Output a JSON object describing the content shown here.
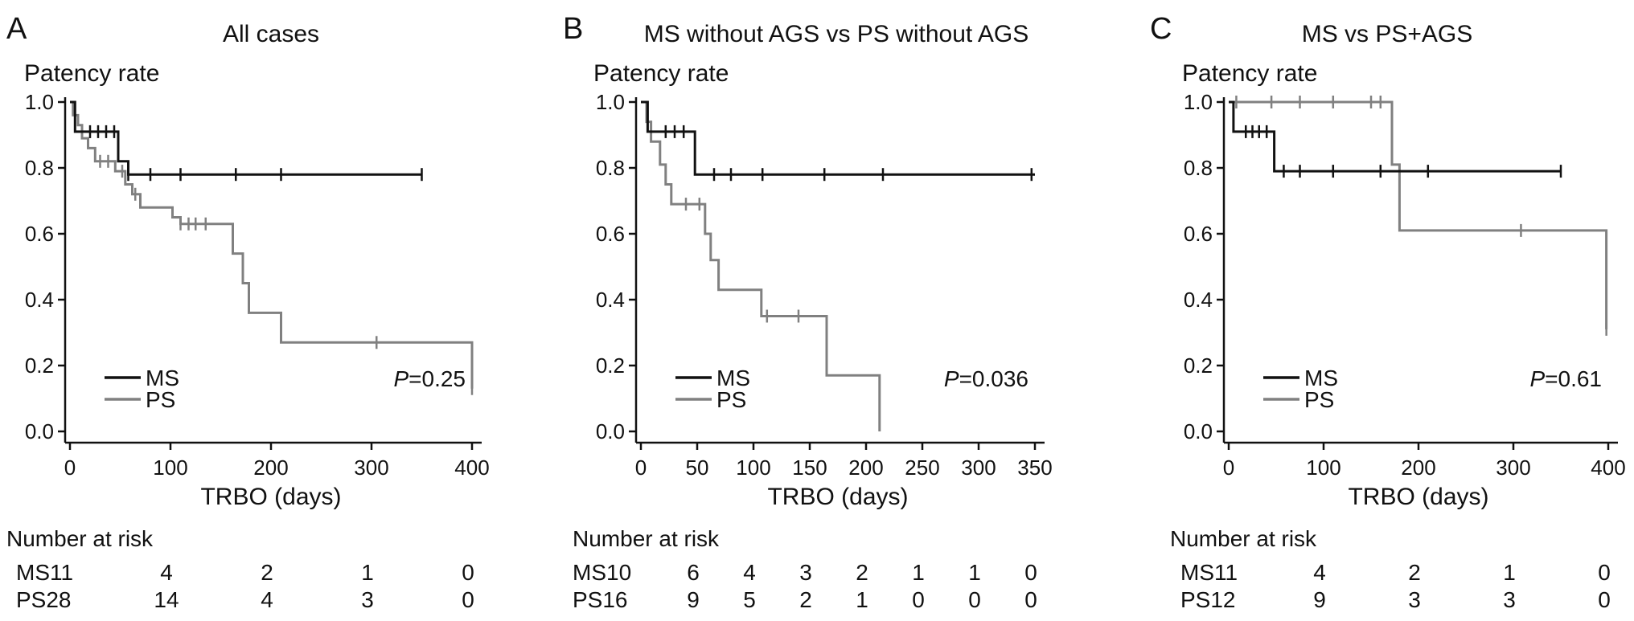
{
  "chart_data": [
    {
      "type": "line",
      "panel_letter": "A",
      "title": "All cases",
      "ylabel": "Patency rate",
      "xlabel": "TRBO (days)",
      "xlim": [
        0,
        400
      ],
      "ylim": [
        0,
        1
      ],
      "xticks": [
        "0",
        "100",
        "200",
        "300",
        "400"
      ],
      "xtick_values": [
        0,
        100,
        200,
        300,
        400
      ],
      "yticks": [
        "0.0",
        "0.2",
        "0.4",
        "0.6",
        "0.8",
        "1.0"
      ],
      "ytick_values": [
        0,
        0.2,
        0.4,
        0.6,
        0.8,
        1.0
      ],
      "grid": false,
      "legend_position": "bottom-left",
      "p_value": {
        "label": "P",
        "text": "=0.25"
      },
      "series": [
        {
          "name": "MS",
          "color": "#111111",
          "x": [
            0,
            5,
            5,
            10,
            10,
            48,
            48,
            58,
            58,
            350
          ],
          "y": [
            1.0,
            1.0,
            0.91,
            0.91,
            0.91,
            0.91,
            0.82,
            0.82,
            0.78,
            0.78
          ],
          "censored": [
            [
              20,
              0.91
            ],
            [
              28,
              0.91
            ],
            [
              36,
              0.91
            ],
            [
              44,
              0.91
            ],
            [
              58,
              0.78
            ],
            [
              80,
              0.78
            ],
            [
              110,
              0.78
            ],
            [
              165,
              0.78
            ],
            [
              210,
              0.78
            ],
            [
              350,
              0.78
            ]
          ]
        },
        {
          "name": "PS",
          "color": "#808080",
          "x": [
            0,
            3,
            3,
            8,
            8,
            12,
            12,
            18,
            18,
            25,
            25,
            45,
            45,
            55,
            55,
            62,
            62,
            70,
            70,
            102,
            102,
            110,
            110,
            162,
            162,
            172,
            172,
            178,
            178,
            210,
            210,
            400,
            400
          ],
          "y": [
            1.0,
            1.0,
            0.96,
            0.96,
            0.93,
            0.93,
            0.89,
            0.89,
            0.86,
            0.86,
            0.82,
            0.82,
            0.79,
            0.79,
            0.75,
            0.75,
            0.72,
            0.72,
            0.68,
            0.68,
            0.65,
            0.65,
            0.63,
            0.63,
            0.54,
            0.54,
            0.45,
            0.45,
            0.36,
            0.36,
            0.27,
            0.27,
            0.13
          ],
          "censored": [
            [
              30,
              0.82
            ],
            [
              38,
              0.82
            ],
            [
              52,
              0.79
            ],
            [
              65,
              0.72
            ],
            [
              110,
              0.63
            ],
            [
              118,
              0.63
            ],
            [
              125,
              0.63
            ],
            [
              135,
              0.63
            ],
            [
              305,
              0.27
            ],
            [
              400,
              0.13
            ]
          ]
        }
      ],
      "risk_table": {
        "heading": "Number at risk",
        "rows": [
          {
            "label": "MS11",
            "values": [
              "4",
              "2",
              "1",
              "0"
            ]
          },
          {
            "label": "PS28",
            "values": [
              "14",
              "4",
              "3",
              "0"
            ]
          }
        ],
        "positions": [
          100,
          200,
          300,
          400
        ]
      }
    },
    {
      "type": "line",
      "panel_letter": "B",
      "title": "MS without AGS vs PS without AGS",
      "ylabel": "Patency rate",
      "xlabel": "TRBO (days)",
      "xlim": [
        0,
        350
      ],
      "ylim": [
        0,
        1
      ],
      "xticks": [
        "0",
        "50",
        "100",
        "150",
        "200",
        "250",
        "300",
        "350"
      ],
      "xtick_values": [
        0,
        50,
        100,
        150,
        200,
        250,
        300,
        350
      ],
      "yticks": [
        "0.0",
        "0.2",
        "0.4",
        "0.6",
        "0.8",
        "1.0"
      ],
      "ytick_values": [
        0,
        0.2,
        0.4,
        0.6,
        0.8,
        1.0
      ],
      "grid": false,
      "legend_position": "bottom-left",
      "p_value": {
        "label": "P",
        "text": "=0.036"
      },
      "series": [
        {
          "name": "MS",
          "color": "#111111",
          "x": [
            0,
            6,
            6,
            48,
            48,
            350
          ],
          "y": [
            1.0,
            1.0,
            0.91,
            0.91,
            0.78,
            0.78
          ],
          "censored": [
            [
              22,
              0.91
            ],
            [
              30,
              0.91
            ],
            [
              38,
              0.91
            ],
            [
              65,
              0.78
            ],
            [
              80,
              0.78
            ],
            [
              108,
              0.78
            ],
            [
              163,
              0.78
            ],
            [
              215,
              0.78
            ],
            [
              347,
              0.78
            ]
          ]
        },
        {
          "name": "PS",
          "color": "#808080",
          "x": [
            0,
            5,
            5,
            9,
            9,
            17,
            17,
            22,
            22,
            27,
            27,
            57,
            57,
            62,
            62,
            69,
            69,
            107,
            107,
            165,
            165,
            212,
            212
          ],
          "y": [
            1.0,
            1.0,
            0.94,
            0.94,
            0.88,
            0.88,
            0.81,
            0.81,
            0.75,
            0.75,
            0.69,
            0.69,
            0.6,
            0.6,
            0.52,
            0.52,
            0.43,
            0.43,
            0.35,
            0.35,
            0.17,
            0.17,
            0.0
          ],
          "censored": [
            [
              40,
              0.69
            ],
            [
              52,
              0.69
            ],
            [
              112,
              0.35
            ],
            [
              140,
              0.35
            ]
          ]
        }
      ],
      "risk_table": {
        "heading": "Number at risk",
        "rows": [
          {
            "label": "MS10",
            "values": [
              "6",
              "4",
              "3",
              "2",
              "1",
              "1",
              "0"
            ]
          },
          {
            "label": "PS16",
            "values": [
              "9",
              "5",
              "2",
              "1",
              "0",
              "0",
              "0"
            ]
          }
        ],
        "positions": [
          50,
          100,
          150,
          200,
          250,
          300,
          350
        ]
      }
    },
    {
      "type": "line",
      "panel_letter": "C",
      "title": "MS vs PS+AGS",
      "ylabel": "Patency rate",
      "xlabel": "TRBO (days)",
      "xlim": [
        0,
        400
      ],
      "ylim": [
        0,
        1
      ],
      "xticks": [
        "0",
        "100",
        "200",
        "300",
        "400"
      ],
      "xtick_values": [
        0,
        100,
        200,
        300,
        400
      ],
      "yticks": [
        "0.0",
        "0.2",
        "0.4",
        "0.6",
        "0.8",
        "1.0"
      ],
      "ytick_values": [
        0,
        0.2,
        0.4,
        0.6,
        0.8,
        1.0
      ],
      "grid": false,
      "legend_position": "bottom-left",
      "p_value": {
        "label": "P",
        "text": "=0.61"
      },
      "series": [
        {
          "name": "MS",
          "color": "#111111",
          "x": [
            0,
            5,
            5,
            48,
            48,
            350
          ],
          "y": [
            1.0,
            1.0,
            0.91,
            0.91,
            0.79,
            0.79
          ],
          "censored": [
            [
              18,
              0.91
            ],
            [
              25,
              0.91
            ],
            [
              32,
              0.91
            ],
            [
              40,
              0.91
            ],
            [
              58,
              0.79
            ],
            [
              75,
              0.79
            ],
            [
              110,
              0.79
            ],
            [
              160,
              0.79
            ],
            [
              210,
              0.79
            ],
            [
              350,
              0.79
            ]
          ]
        },
        {
          "name": "PS",
          "color": "#808080",
          "x": [
            0,
            172,
            172,
            180,
            180,
            398,
            398
          ],
          "y": [
            1.0,
            1.0,
            0.81,
            0.81,
            0.61,
            0.61,
            0.31
          ],
          "censored": [
            [
              8,
              1.0
            ],
            [
              45,
              1.0
            ],
            [
              75,
              1.0
            ],
            [
              110,
              1.0
            ],
            [
              150,
              1.0
            ],
            [
              160,
              1.0
            ],
            [
              308,
              0.61
            ],
            [
              398,
              0.31
            ]
          ]
        }
      ],
      "risk_table": {
        "heading": "Number at risk",
        "rows": [
          {
            "label": "MS11",
            "values": [
              "4",
              "2",
              "1",
              "0"
            ]
          },
          {
            "label": "PS12",
            "values": [
              "9",
              "3",
              "3",
              "0"
            ]
          }
        ],
        "positions": [
          100,
          200,
          300,
          400
        ]
      }
    }
  ]
}
